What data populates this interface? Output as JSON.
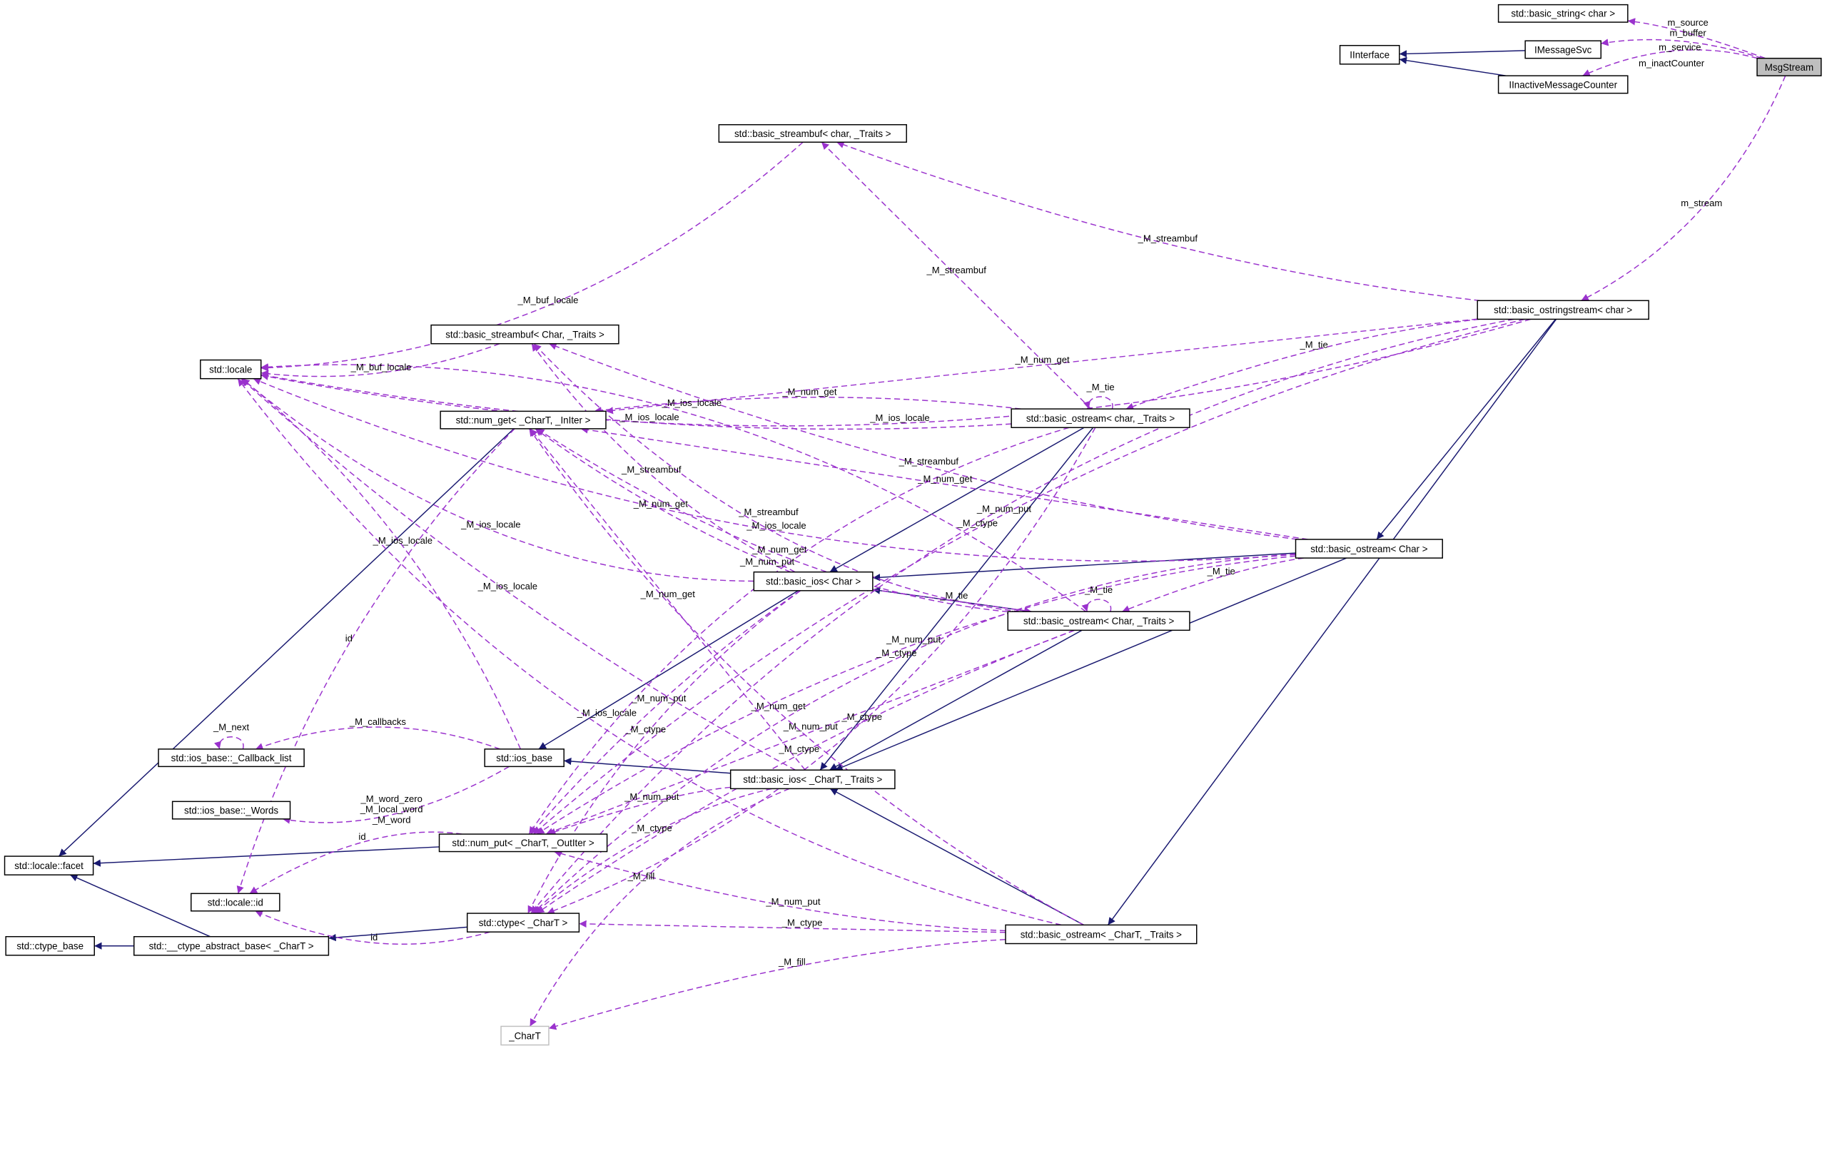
{
  "colors": {
    "usage_edge": "#9a32cd",
    "inheritance_edge": "#191970",
    "focus_fill": "#bfbfbf",
    "external_border": "#bfbfbf"
  },
  "nodes": {
    "msg": {
      "label": "MsgStream",
      "style": "focus"
    },
    "bstr": {
      "label": "std::basic_string< char >"
    },
    "imsg": {
      "label": "IMessageSvc"
    },
    "iint": {
      "label": "IInterface"
    },
    "iinact": {
      "label": "IInactiveMessageCounter"
    },
    "sbchar": {
      "label": "std::basic_streambuf< char, _Traits >"
    },
    "ostrs": {
      "label": "std::basic_ostringstream< char >"
    },
    "sbChar": {
      "label": "std::basic_streambuf< Char, _Traits >"
    },
    "locale": {
      "label": "std::locale"
    },
    "numget": {
      "label": "std::num_get< _CharT, _InIter >"
    },
    "oschartr": {
      "label": "std::basic_ostream< char, _Traits >"
    },
    "osChar": {
      "label": "std::basic_ostream< Char >"
    },
    "iosChar": {
      "label": "std::basic_ios< Char >"
    },
    "osCharTr": {
      "label": "std::basic_ostream< Char, _Traits >"
    },
    "cb": {
      "label": "std::ios_base::_Callback_list"
    },
    "iosbase": {
      "label": "std::ios_base"
    },
    "iosCT": {
      "label": "std::basic_ios< _CharT, _Traits >"
    },
    "words": {
      "label": "std::ios_base::_Words"
    },
    "numput": {
      "label": "std::num_put< _CharT, _OutIter >"
    },
    "facet": {
      "label": "std::locale::facet"
    },
    "lid": {
      "label": "std::locale::id"
    },
    "ctype": {
      "label": "std::ctype< _CharT >"
    },
    "ctbase": {
      "label": "std::ctype_base"
    },
    "ctabs": {
      "label": "std::__ctype_abstract_base< _CharT >"
    },
    "chart": {
      "label": "_CharT",
      "style": "external"
    },
    "osCT": {
      "label": "std::basic_ostream< _CharT, _Traits >"
    }
  },
  "edges": [
    {
      "from": "imsg",
      "to": "iint",
      "type": "inheritance"
    },
    {
      "from": "iinact",
      "to": "iint",
      "type": "inheritance"
    },
    {
      "from": "ostrs",
      "to": "osChar",
      "type": "inheritance"
    },
    {
      "from": "ostrs",
      "to": "osCT",
      "type": "inheritance"
    },
    {
      "from": "oschartr",
      "to": "iosChar",
      "type": "inheritance"
    },
    {
      "from": "oschartr",
      "to": "iosCT",
      "type": "inheritance"
    },
    {
      "from": "osChar",
      "to": "iosChar",
      "type": "inheritance"
    },
    {
      "from": "osChar",
      "to": "iosCT",
      "type": "inheritance"
    },
    {
      "from": "osCharTr",
      "to": "iosChar",
      "type": "inheritance"
    },
    {
      "from": "osCharTr",
      "to": "iosCT",
      "type": "inheritance"
    },
    {
      "from": "iosChar",
      "to": "iosbase",
      "type": "inheritance"
    },
    {
      "from": "iosCT",
      "to": "iosbase",
      "type": "inheritance"
    },
    {
      "from": "osCT",
      "to": "iosCT",
      "type": "inheritance"
    },
    {
      "from": "numget",
      "to": "facet",
      "type": "inheritance"
    },
    {
      "from": "numput",
      "to": "facet",
      "type": "inheritance"
    },
    {
      "from": "ctabs",
      "to": "facet",
      "type": "inheritance"
    },
    {
      "from": "ctype",
      "to": "ctabs",
      "type": "inheritance"
    },
    {
      "from": "ctabs",
      "to": "ctbase",
      "type": "inheritance"
    },
    {
      "from": "msg",
      "to": "bstr",
      "type": "usage",
      "label": "m_source\nm_buffer"
    },
    {
      "from": "msg",
      "to": "imsg",
      "type": "usage",
      "label": "m_service"
    },
    {
      "from": "msg",
      "to": "iinact",
      "type": "usage",
      "label": "m_inactCounter"
    },
    {
      "from": "msg",
      "to": "ostrs",
      "type": "usage",
      "label": "m_stream"
    },
    {
      "from": "ostrs",
      "to": "locale",
      "type": "usage",
      "label": "_M_ios_locale"
    },
    {
      "from": "ostrs",
      "to": "sbchar",
      "type": "usage",
      "label": "_M_streambuf"
    },
    {
      "from": "ostrs",
      "to": "numget",
      "type": "usage",
      "label": "_M_num_get"
    },
    {
      "from": "ostrs",
      "to": "oschartr",
      "type": "usage",
      "label": "_M_tie"
    },
    {
      "from": "ostrs",
      "to": "numput",
      "type": "usage",
      "label": "_M_num_put"
    },
    {
      "from": "ostrs",
      "to": "ctype",
      "type": "usage",
      "label": "_M_ctype"
    },
    {
      "from": "sbchar",
      "to": "locale",
      "type": "usage",
      "label": "_M_buf_locale"
    },
    {
      "from": "sbChar",
      "to": "locale",
      "type": "usage",
      "label": "_M_buf_locale"
    },
    {
      "from": "oschartr",
      "to": "locale",
      "type": "usage",
      "label": "_M_ios_locale"
    },
    {
      "from": "oschartr",
      "to": "sbchar",
      "type": "usage",
      "label": "_M_streambuf"
    },
    {
      "from": "oschartr",
      "to": "numget",
      "type": "usage",
      "label": "_M_num_get"
    },
    {
      "from": "oschartr",
      "to": "oschartr",
      "type": "usage",
      "label": "_M_tie"
    },
    {
      "from": "oschartr",
      "to": "numput",
      "type": "usage",
      "label": "_M_num_put"
    },
    {
      "from": "oschartr",
      "to": "ctype",
      "type": "usage",
      "label": "_M_ctype"
    },
    {
      "from": "osChar",
      "to": "locale",
      "type": "usage",
      "label": "_M_ios_locale"
    },
    {
      "from": "osChar",
      "to": "sbChar",
      "type": "usage",
      "label": "_M_streambuf"
    },
    {
      "from": "osChar",
      "to": "numget",
      "type": "usage",
      "label": "_M_num_get"
    },
    {
      "from": "osChar",
      "to": "osCharTr",
      "type": "usage",
      "label": "_M_tie"
    },
    {
      "from": "osChar",
      "to": "numput",
      "type": "usage",
      "label": "_M_num_put"
    },
    {
      "from": "osChar",
      "to": "ctype",
      "type": "usage",
      "label": "_M_ctype"
    },
    {
      "from": "iosChar",
      "to": "locale",
      "type": "usage",
      "label": "_M_ios_locale"
    },
    {
      "from": "iosChar",
      "to": "sbChar",
      "type": "usage",
      "label": "_M_streambuf"
    },
    {
      "from": "iosChar",
      "to": "numget",
      "type": "usage",
      "label": "_M_num_get"
    },
    {
      "from": "iosChar",
      "to": "osCharTr",
      "type": "usage",
      "label": "_M_tie"
    },
    {
      "from": "iosChar",
      "to": "numput",
      "type": "usage",
      "label": "_M_num_put"
    },
    {
      "from": "iosChar",
      "to": "ctype",
      "type": "usage",
      "label": "_M_ctype"
    },
    {
      "from": "osCharTr",
      "to": "locale",
      "type": "usage",
      "label": "_M_ios_locale"
    },
    {
      "from": "osCharTr",
      "to": "sbChar",
      "type": "usage",
      "label": "_M_streambuf"
    },
    {
      "from": "osCharTr",
      "to": "numget",
      "type": "usage",
      "label": "_M_num_get"
    },
    {
      "from": "osCharTr",
      "to": "osCharTr",
      "type": "usage",
      "label": "_M_tie"
    },
    {
      "from": "osCharTr",
      "to": "numput",
      "type": "usage",
      "label": "_M_num_put"
    },
    {
      "from": "osCharTr",
      "to": "ctype",
      "type": "usage",
      "label": "_M_ctype"
    },
    {
      "from": "iosbase",
      "to": "locale",
      "type": "usage",
      "label": "_M_ios_locale"
    },
    {
      "from": "iosbase",
      "to": "cb",
      "type": "usage",
      "label": "_M_callbacks"
    },
    {
      "from": "iosbase",
      "to": "words",
      "type": "usage",
      "label": "_M_word_zero\n_M_local_word\n_M_word"
    },
    {
      "from": "cb",
      "to": "cb",
      "type": "usage",
      "label": "_M_next"
    },
    {
      "from": "iosCT",
      "to": "locale",
      "type": "usage",
      "label": "_M_ios_locale"
    },
    {
      "from": "iosCT",
      "to": "numget",
      "type": "usage",
      "label": "_M_num_get"
    },
    {
      "from": "iosCT",
      "to": "numput",
      "type": "usage",
      "label": "_M_num_put"
    },
    {
      "from": "iosCT",
      "to": "ctype",
      "type": "usage",
      "label": "_M_ctype"
    },
    {
      "from": "iosCT",
      "to": "chart",
      "type": "usage",
      "label": "_M_fill"
    },
    {
      "from": "osCT",
      "to": "locale",
      "type": "usage",
      "label": "_M_ios_locale"
    },
    {
      "from": "osCT",
      "to": "numget",
      "type": "usage",
      "label": "_M_num_get"
    },
    {
      "from": "osCT",
      "to": "numput",
      "type": "usage",
      "label": "_M_num_put"
    },
    {
      "from": "osCT",
      "to": "ctype",
      "type": "usage",
      "label": "_M_ctype"
    },
    {
      "from": "osCT",
      "to": "chart",
      "type": "usage",
      "label": "_M_fill"
    },
    {
      "from": "numget",
      "to": "lid",
      "type": "usage",
      "label": "id"
    },
    {
      "from": "numput",
      "to": "lid",
      "type": "usage",
      "label": "id"
    },
    {
      "from": "ctype",
      "to": "lid",
      "type": "usage",
      "label": "id"
    }
  ]
}
